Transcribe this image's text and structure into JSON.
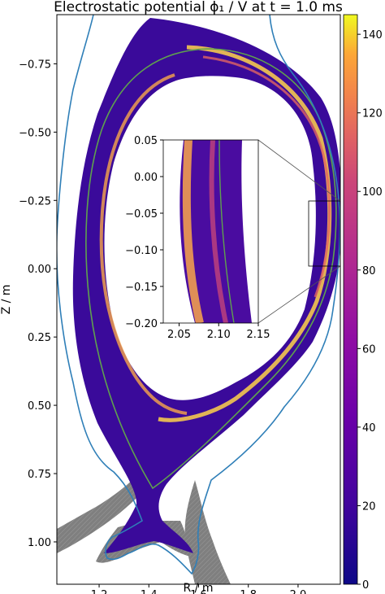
{
  "chart_data": {
    "type": "heatmap",
    "title": "Electrostatic potential ϕ₁ / V at t = 1.0 ms",
    "xlabel": "R / m",
    "ylabel": "Z / m",
    "xlim": [
      1.03,
      2.17
    ],
    "ylim": [
      1.155,
      -0.93
    ],
    "x_ticks": [
      "1.2",
      "1.4",
      "1.6",
      "1.8",
      "2.0"
    ],
    "y_ticks": [
      "−0.75",
      "−0.50",
      "−0.25",
      "0.00",
      "0.25",
      "0.50",
      "0.75",
      "1.00"
    ],
    "colorbar": {
      "min": 0,
      "max": 145,
      "colormap": "plasma",
      "ticks": [
        "0",
        "20",
        "40",
        "60",
        "80",
        "100",
        "120",
        "140"
      ]
    },
    "inset": {
      "xlim": [
        2.03,
        2.15
      ],
      "ylim": [
        -0.2,
        0.05
      ],
      "x_ticks": [
        "2.05",
        "2.10",
        "2.15"
      ],
      "y_ticks": [
        "0.05",
        "0.00",
        "−0.05",
        "−0.10",
        "−0.15",
        "−0.20"
      ]
    },
    "grid": false
  },
  "colors": {
    "wall": "#2f7fb8",
    "separatrix": "#5fa14e",
    "divertor": "#808080",
    "outer_band": "#ffd24a",
    "inner_band": "#f9a64a"
  }
}
